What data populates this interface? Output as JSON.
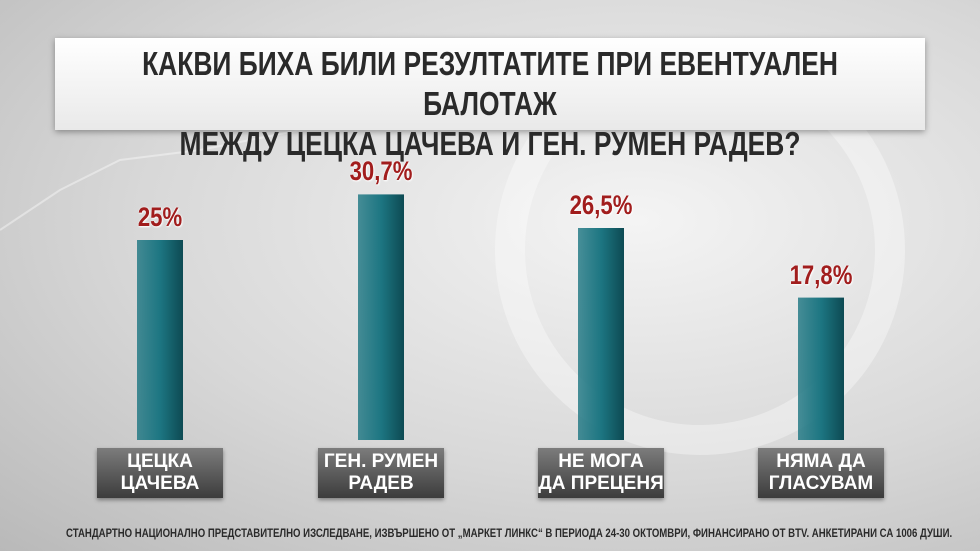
{
  "chart_data": {
    "type": "bar",
    "title": "КАКВИ БИХА БИЛИ РЕЗУЛТАТИТЕ ПРИ ЕВЕНТУАЛЕН БАЛОТАЖ\nМЕЖДУ ЦЕЦКА ЦАЧЕВА И ГЕН. РУМЕН РАДЕВ?",
    "categories": [
      "ЦЕЦКА\nЦАЧЕВА",
      "ГЕН. РУМЕН\nРАДЕВ",
      "НЕ МОГА\nДА ПРЕЦЕНЯ",
      "НЯМА ДА\nГЛАСУВАМ"
    ],
    "values": [
      25,
      30.7,
      26.5,
      17.8
    ],
    "value_labels": [
      "25%",
      "30,7%",
      "26,5%",
      "17,8%"
    ],
    "color": "#1d7682",
    "note": "СТАНДАРТНО НАЦИОНАЛНО ПРЕДСТАВИТЕЛНО ИЗСЛЕДВАНЕ, ИЗВЪРШЕНО ОТ „МАРКЕТ ЛИНКС“ В ПЕРИОДА 24-30 ОКТОМВРИ, ФИНАНСИРАНО ОТ BTV. АНКЕТИРАНИ СА 1006 ДУШИ."
  }
}
